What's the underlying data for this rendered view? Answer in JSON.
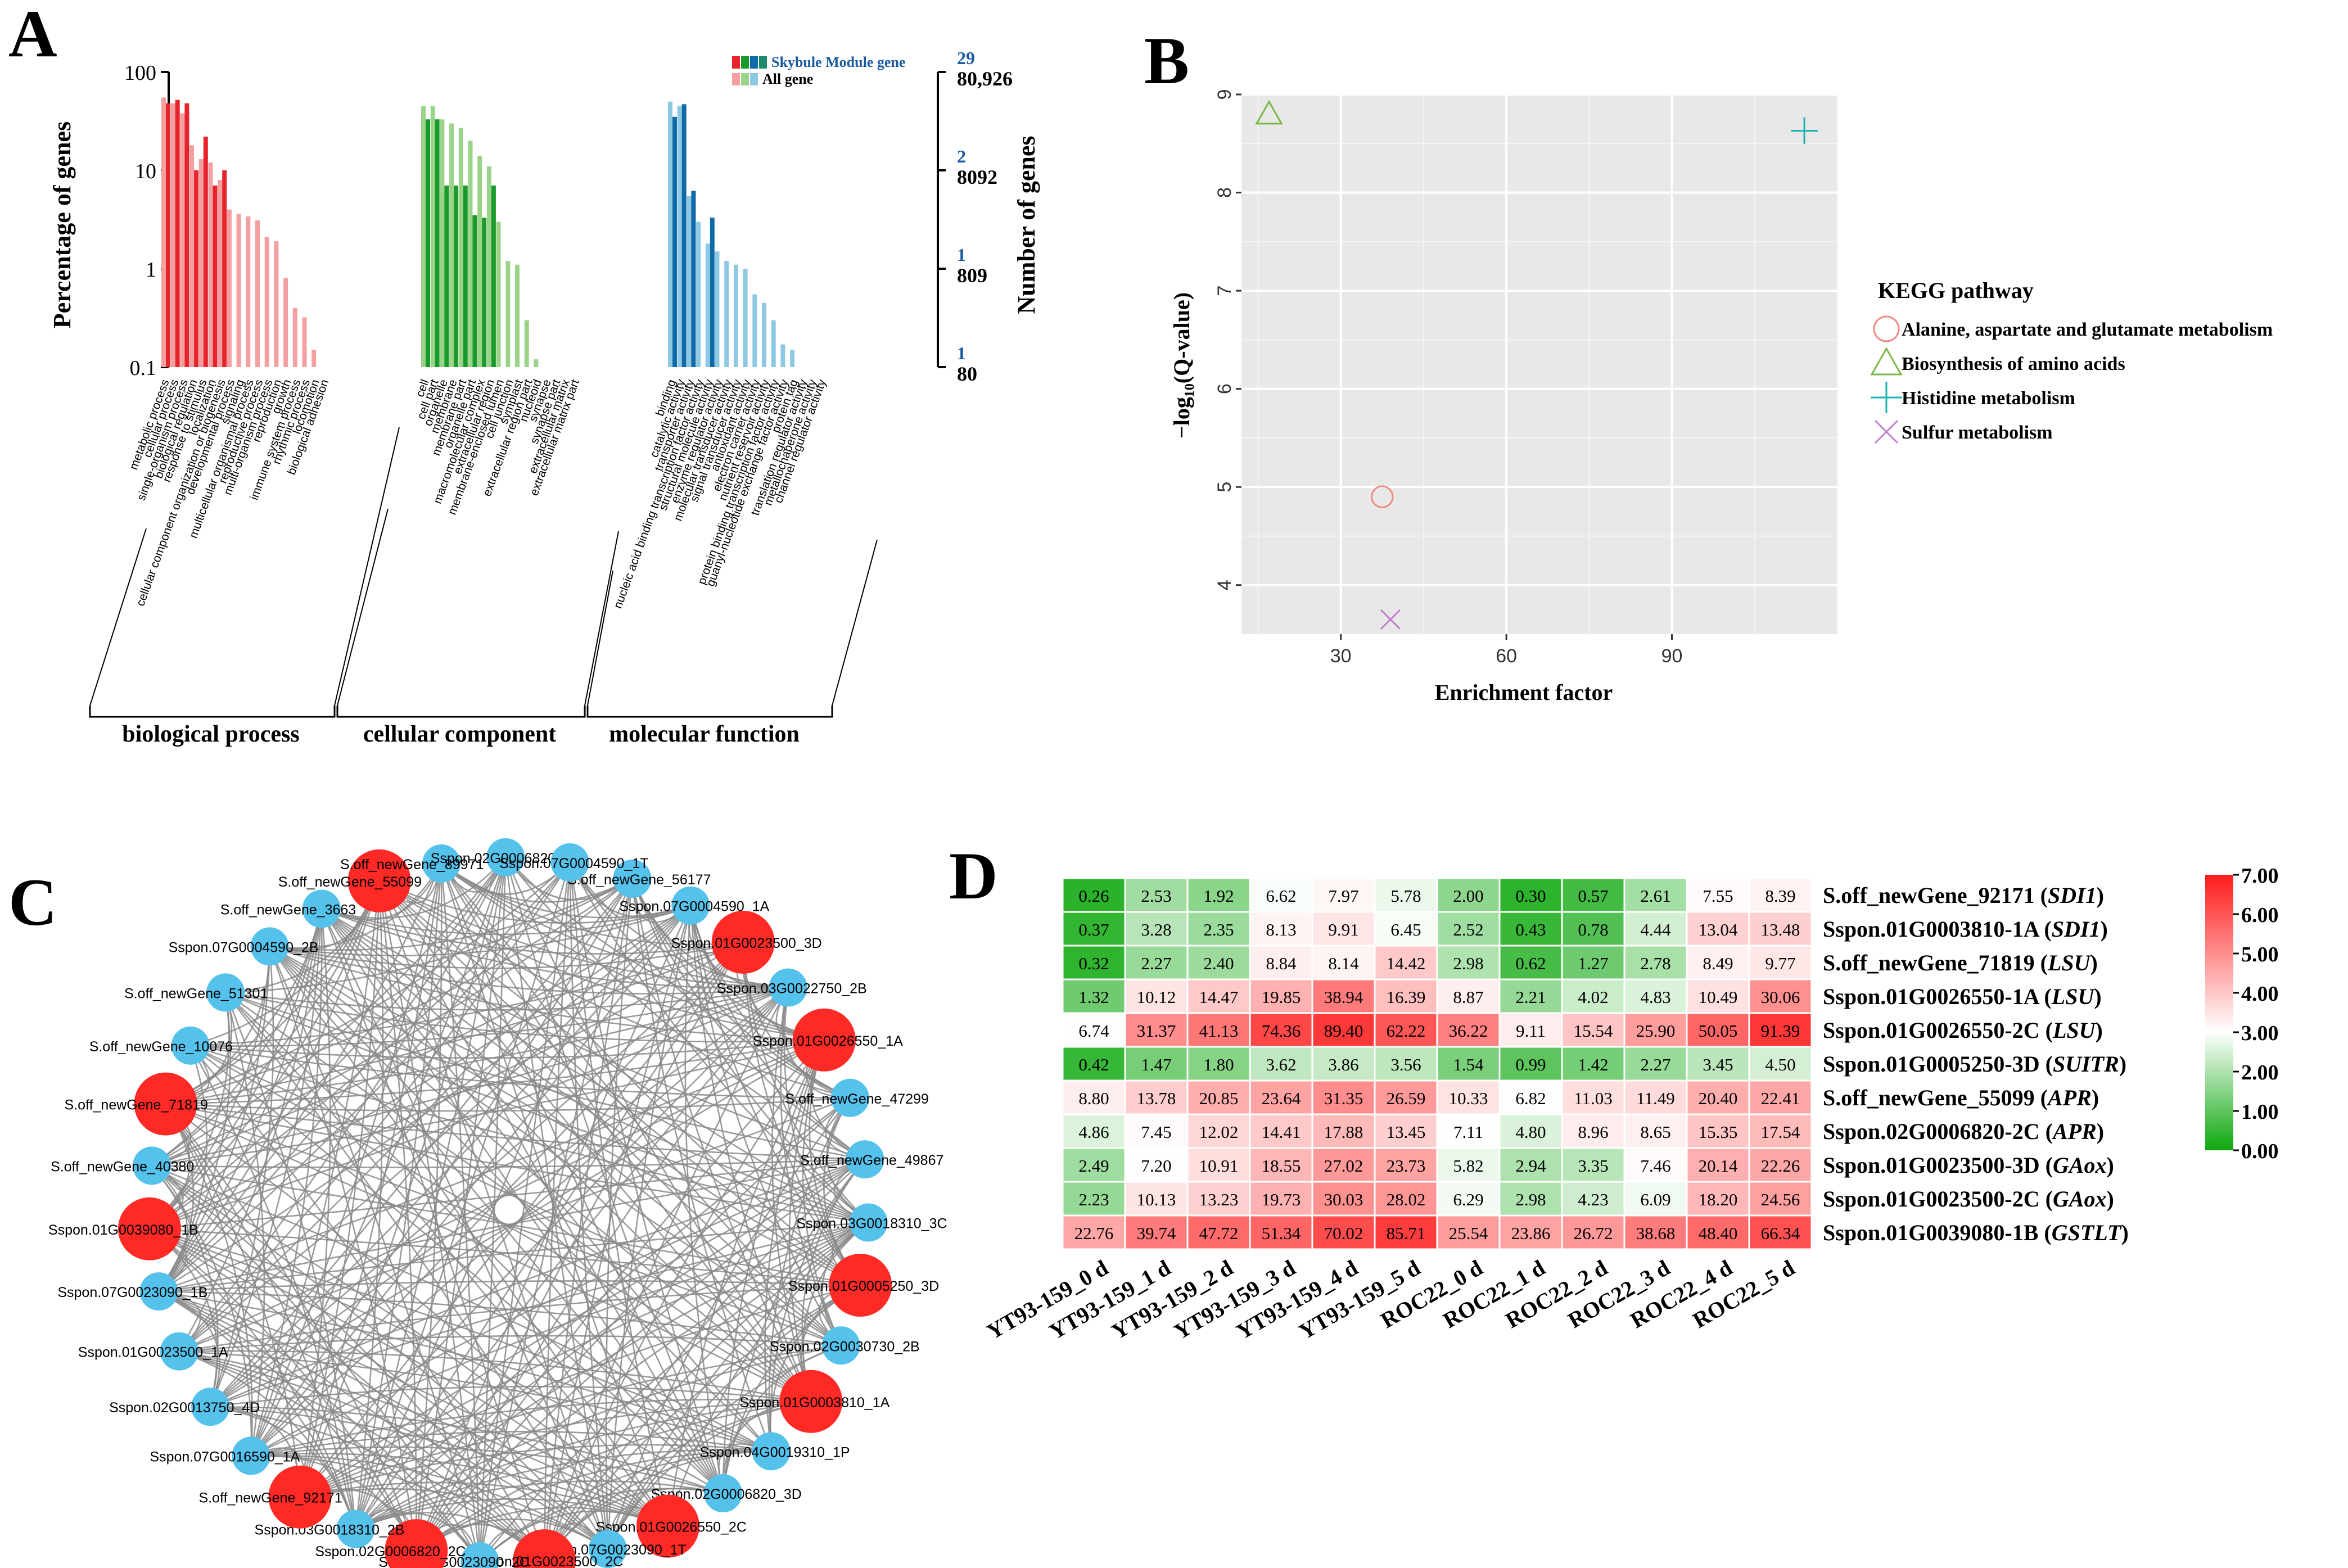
{
  "panels": {
    "a": "A",
    "b": "B",
    "c": "C",
    "d": "D"
  },
  "chart_data": [
    {
      "id": "A",
      "type": "bar",
      "ylabel_left": "Percentage of genes",
      "ylabel_right": "Number of genes",
      "left_ticks": [
        "100",
        "10",
        "1",
        "0.1"
      ],
      "right_ticks_module": [
        "29",
        "2",
        "1",
        "1"
      ],
      "right_ticks_all": [
        "80,926",
        "8092",
        "809",
        "80"
      ],
      "legend": [
        {
          "label": "Skybule Module gene",
          "colors": [
            "#e8232b",
            "#1a9a2c",
            "#0f6aa8",
            "#1e8a6a"
          ]
        },
        {
          "label": "All gene",
          "colors": [
            "#f4a0a0",
            "#9bd488",
            "#8ec9e4"
          ]
        }
      ],
      "categories_group": [
        "biological process",
        "cellular component",
        "molecular function"
      ],
      "groups": [
        {
          "name": "biological process",
          "module_color": "#e8232b",
          "all_color": "#f4a0a0",
          "terms": [
            {
              "label": "metabolic process",
              "all": 55,
              "module": 48
            },
            {
              "label": "cellular process",
              "all": 48,
              "module": 52
            },
            {
              "label": "single-organism process",
              "all": 38,
              "module": 48
            },
            {
              "label": "biological regulation",
              "all": 18,
              "module": 10
            },
            {
              "label": "response to stimulus",
              "all": 13,
              "module": 22
            },
            {
              "label": "localization",
              "all": 12,
              "module": 7
            },
            {
              "label": "cellular component organization or biogenesis",
              "all": 8,
              "module": 10
            },
            {
              "label": "developmental process",
              "all": 4,
              "module": null
            },
            {
              "label": "signaling",
              "all": 3.6,
              "module": null
            },
            {
              "label": "multicellular organismal process",
              "all": 3.4,
              "module": null
            },
            {
              "label": "reproductive process",
              "all": 3.1,
              "module": null
            },
            {
              "label": "multi-organism process",
              "all": 2.1,
              "module": null
            },
            {
              "label": "reproduction",
              "all": 1.9,
              "module": null
            },
            {
              "label": "growth",
              "all": 0.8,
              "module": null
            },
            {
              "label": "immune system process",
              "all": 0.4,
              "module": null
            },
            {
              "label": "rhythmic process",
              "all": 0.32,
              "module": null
            },
            {
              "label": "locomotion",
              "all": 0.15,
              "module": null
            },
            {
              "label": "biological adhesion",
              "all": 0.1,
              "module": null
            }
          ]
        },
        {
          "name": "cellular component",
          "module_color": "#1a9a2c",
          "all_color": "#9bd488",
          "terms": [
            {
              "label": "cell",
              "all": 45,
              "module": 33
            },
            {
              "label": "cell part",
              "all": 45,
              "module": 33
            },
            {
              "label": "organelle",
              "all": 33,
              "module": 7
            },
            {
              "label": "membrane",
              "all": 30,
              "module": 7
            },
            {
              "label": "membrane part",
              "all": 27,
              "module": 7
            },
            {
              "label": "organelle part",
              "all": 20,
              "module": 3.5
            },
            {
              "label": "macromolecular complex",
              "all": 14,
              "module": 3.3
            },
            {
              "label": "extracellular region",
              "all": 11,
              "module": 7
            },
            {
              "label": "membrane-enclosed lumen",
              "all": 3,
              "module": null
            },
            {
              "label": "cell junction",
              "all": 1.2,
              "module": null
            },
            {
              "label": "symplast",
              "all": 1.1,
              "module": null
            },
            {
              "label": "extracellular region part",
              "all": 0.3,
              "module": null
            },
            {
              "label": "nucleoid",
              "all": 0.12,
              "module": null
            },
            {
              "label": "synapse",
              "all": 0.1,
              "module": null
            },
            {
              "label": "synapse part",
              "all": 0.1,
              "module": null
            },
            {
              "label": "extracellular matrix",
              "all": 0.1,
              "module": null
            },
            {
              "label": "extracellular matrix part",
              "all": 0.1,
              "module": null
            }
          ]
        },
        {
          "name": "molecular function",
          "module_color": "#0f6aa8",
          "all_color": "#8ec9e4",
          "terms": [
            {
              "label": "binding",
              "all": 50,
              "module": 35
            },
            {
              "label": "catalytic activity",
              "all": 45,
              "module": 47
            },
            {
              "label": "transporter activity",
              "all": 5.5,
              "module": 6.2
            },
            {
              "label": "nucleic acid binding transcription factor activity",
              "all": 3,
              "module": null
            },
            {
              "label": "structural molecule activity",
              "all": 1.8,
              "module": 3.3
            },
            {
              "label": "enzyme regulator activity",
              "all": 1.5,
              "module": null
            },
            {
              "label": "molecular transducer activity",
              "all": 1.2,
              "module": null
            },
            {
              "label": "signal transducer activity",
              "all": 1.1,
              "module": null
            },
            {
              "label": "antioxidant activity",
              "all": 1.0,
              "module": null
            },
            {
              "label": "electron carrier activity",
              "all": 0.55,
              "module": null
            },
            {
              "label": "nutrient reservoir activity",
              "all": 0.45,
              "module": null
            },
            {
              "label": "protein binding transcription factor activity",
              "all": 0.3,
              "module": null
            },
            {
              "label": "guanyl-nucleotide exchange factor activity",
              "all": 0.17,
              "module": null
            },
            {
              "label": "protein tag",
              "all": 0.15,
              "module": null
            },
            {
              "label": "translation regulator activity",
              "all": 0.1,
              "module": null
            },
            {
              "label": "metallochaperone activity",
              "all": 0.1,
              "module": null
            },
            {
              "label": "channel regulator activity",
              "all": 0.1,
              "module": null
            }
          ]
        }
      ]
    },
    {
      "id": "B",
      "type": "scatter",
      "xlabel": "Enrichment factor",
      "ylabel": "−log₁₀(Q-value)",
      "xlim": [
        12,
        120
      ],
      "ylim": [
        3.5,
        9.0
      ],
      "xticks": [
        30,
        60,
        90
      ],
      "yticks": [
        4,
        5,
        6,
        7,
        8,
        9
      ],
      "legend_title": "KEGG pathway",
      "series": [
        {
          "name": "Alanine, aspartate and glutamate metabolism",
          "marker": "circle",
          "color": "#f08a80",
          "x": 37.5,
          "y": 4.9
        },
        {
          "name": "Biosynthesis of amino acids",
          "marker": "triangle",
          "color": "#7ab846",
          "x": 17,
          "y": 8.8
        },
        {
          "name": "Histidine metabolism",
          "marker": "plus",
          "color": "#1ab0b0",
          "x": 114,
          "y": 8.63
        },
        {
          "name": "Sulfur metabolism",
          "marker": "cross",
          "color": "#c27fd0",
          "x": 39,
          "y": 3.65
        }
      ]
    },
    {
      "id": "C",
      "type": "network",
      "nodes": [
        {
          "label": "S.off_newGene_56177",
          "color": "#55c2ec",
          "big": false
        },
        {
          "label": "Sspon.07G0004590_1A",
          "color": "#55c2ec",
          "big": false
        },
        {
          "label": "Sspon.01G0023500_3D",
          "color": "#ff2a26",
          "big": true
        },
        {
          "label": "Sspon.03G0022750_2B",
          "color": "#55c2ec",
          "big": false
        },
        {
          "label": "Sspon.01G0026550_1A",
          "color": "#ff2a26",
          "big": true
        },
        {
          "label": "S.off_newGene_47299",
          "color": "#55c2ec",
          "big": false
        },
        {
          "label": "S.off_newGene_49867",
          "color": "#55c2ec",
          "big": false
        },
        {
          "label": "Sspon.03G0018310_3C",
          "color": "#55c2ec",
          "big": false
        },
        {
          "label": "Sspon.01G0005250_3D",
          "color": "#ff2a26",
          "big": true
        },
        {
          "label": "Sspon.02G0030730_2B",
          "color": "#55c2ec",
          "big": false
        },
        {
          "label": "Sspon.01G0003810_1A",
          "color": "#ff2a26",
          "big": true
        },
        {
          "label": "Sspon.04G0019310_1P",
          "color": "#55c2ec",
          "big": false
        },
        {
          "label": "Sspon.02G0006820_3D",
          "color": "#55c2ec",
          "big": false
        },
        {
          "label": "Sspon.01G0026550_2C",
          "color": "#ff2a26",
          "big": true
        },
        {
          "label": "Sspon.07G0023090_1T",
          "color": "#55c2ec",
          "big": false
        },
        {
          "label": "Sspon.01G0023500_2C",
          "color": "#ff2a26",
          "big": true
        },
        {
          "label": "Sspon.07G0023090_2C",
          "color": "#55c2ec",
          "big": false
        },
        {
          "label": "Sspon.02G0006820_2C",
          "color": "#ff2a26",
          "big": true
        },
        {
          "label": "Sspon.03G0018310_2B",
          "color": "#55c2ec",
          "big": false
        },
        {
          "label": "S.off_newGene_92171",
          "color": "#ff2a26",
          "big": true
        },
        {
          "label": "Sspon.07G0016590_1A",
          "color": "#55c2ec",
          "big": false
        },
        {
          "label": "Sspon.02G0013750_4D",
          "color": "#55c2ec",
          "big": false
        },
        {
          "label": "Sspon.01G0023500_1A",
          "color": "#55c2ec",
          "big": false
        },
        {
          "label": "Sspon.07G0023090_1B",
          "color": "#55c2ec",
          "big": false
        },
        {
          "label": "Sspon.01G0039080_1B",
          "color": "#ff2a26",
          "big": true
        },
        {
          "label": "S.off_newGene_40380",
          "color": "#55c2ec",
          "big": false
        },
        {
          "label": "S.off_newGene_71819",
          "color": "#ff2a26",
          "big": true
        },
        {
          "label": "S.off_newGene_10076",
          "color": "#55c2ec",
          "big": false
        },
        {
          "label": "S.off_newGene_51301",
          "color": "#55c2ec",
          "big": false
        },
        {
          "label": "Sspon.07G0004590_2B",
          "color": "#55c2ec",
          "big": false
        },
        {
          "label": "S.off_newGene_3663",
          "color": "#55c2ec",
          "big": false
        },
        {
          "label": "S.off_newGene_55099",
          "color": "#ff2a26",
          "big": true
        },
        {
          "label": "S.off_newGene_89971",
          "color": "#55c2ec",
          "big": false
        },
        {
          "label": "Sspon.02G0006820_1A",
          "color": "#55c2ec",
          "big": false
        },
        {
          "label": "Sspon.07G0004590_1T",
          "color": "#55c2ec",
          "big": false
        }
      ]
    },
    {
      "id": "D",
      "type": "heatmap",
      "columns": [
        "YT93-159_0 d",
        "YT93-159_1 d",
        "YT93-159_2 d",
        "YT93-159_3 d",
        "YT93-159_4 d",
        "YT93-159_5 d",
        "ROC22_0 d",
        "ROC22_1 d",
        "ROC22_2 d",
        "ROC22_3 d",
        "ROC22_4 d",
        "ROC22_5 d"
      ],
      "rows": [
        {
          "gene": "S.off_newGene_92171",
          "annot": "SDI1",
          "values": [
            "0.26",
            "2.53",
            "1.92",
            "6.62",
            "7.97",
            "5.78",
            "2.00",
            "0.30",
            "0.57",
            "2.61",
            "7.55",
            "8.39"
          ]
        },
        {
          "gene": "Sspon.01G0003810-1A",
          "annot": "SDI1",
          "values": [
            "0.37",
            "3.28",
            "2.35",
            "8.13",
            "9.91",
            "6.45",
            "2.52",
            "0.43",
            "0.78",
            "4.44",
            "13.04",
            "13.48"
          ]
        },
        {
          "gene": "S.off_newGene_71819",
          "annot": "LSU",
          "values": [
            "0.32",
            "2.27",
            "2.40",
            "8.84",
            "8.14",
            "14.42",
            "2.98",
            "0.62",
            "1.27",
            "2.78",
            "8.49",
            "9.77"
          ]
        },
        {
          "gene": "Sspon.01G0026550-1A",
          "annot": "LSU",
          "values": [
            "1.32",
            "10.12",
            "14.47",
            "19.85",
            "38.94",
            "16.39",
            "8.87",
            "2.21",
            "4.02",
            "4.83",
            "10.49",
            "30.06"
          ]
        },
        {
          "gene": "Sspon.01G0026550-2C",
          "annot": "LSU",
          "values": [
            "6.74",
            "31.37",
            "41.13",
            "74.36",
            "89.40",
            "62.22",
            "36.22",
            "9.11",
            "15.54",
            "25.90",
            "50.05",
            "91.39"
          ]
        },
        {
          "gene": "Sspon.01G0005250-3D",
          "annot": "SUITR",
          "values": [
            "0.42",
            "1.47",
            "1.80",
            "3.62",
            "3.86",
            "3.56",
            "1.54",
            "0.99",
            "1.42",
            "2.27",
            "3.45",
            "4.50"
          ]
        },
        {
          "gene": "S.off_newGene_55099",
          "annot": "APR",
          "values": [
            "8.80",
            "13.78",
            "20.85",
            "23.64",
            "31.35",
            "26.59",
            "10.33",
            "6.82",
            "11.03",
            "11.49",
            "20.40",
            "22.41"
          ]
        },
        {
          "gene": "Sspon.02G0006820-2C",
          "annot": "APR",
          "values": [
            "4.86",
            "7.45",
            "12.02",
            "14.41",
            "17.88",
            "13.45",
            "7.11",
            "4.80",
            "8.96",
            "8.65",
            "15.35",
            "17.54"
          ]
        },
        {
          "gene": "Sspon.01G0023500-3D",
          "annot": "GAox",
          "values": [
            "2.49",
            "7.20",
            "10.91",
            "18.55",
            "27.02",
            "23.73",
            "5.82",
            "2.94",
            "3.35",
            "7.46",
            "20.14",
            "22.26"
          ]
        },
        {
          "gene": "Sspon.01G0023500-2C",
          "annot": "GAox",
          "values": [
            "2.23",
            "10.13",
            "13.23",
            "19.73",
            "30.03",
            "28.02",
            "6.29",
            "2.98",
            "4.23",
            "6.09",
            "18.20",
            "24.56"
          ]
        },
        {
          "gene": "Sspon.01G0039080-1B",
          "annot": "GSTLT",
          "values": [
            "22.76",
            "39.74",
            "47.72",
            "51.34",
            "70.02",
            "85.71",
            "25.54",
            "23.86",
            "26.72",
            "38.68",
            "48.40",
            "66.34"
          ]
        }
      ],
      "scale_ticks": [
        "7.00",
        "6.00",
        "5.00",
        "4.00",
        "3.00",
        "2.00",
        "1.00",
        "0.00"
      ],
      "scale_colors": {
        "low": "#0fa80f",
        "mid": "#ffffff",
        "high": "#ff1c1c"
      }
    }
  ]
}
